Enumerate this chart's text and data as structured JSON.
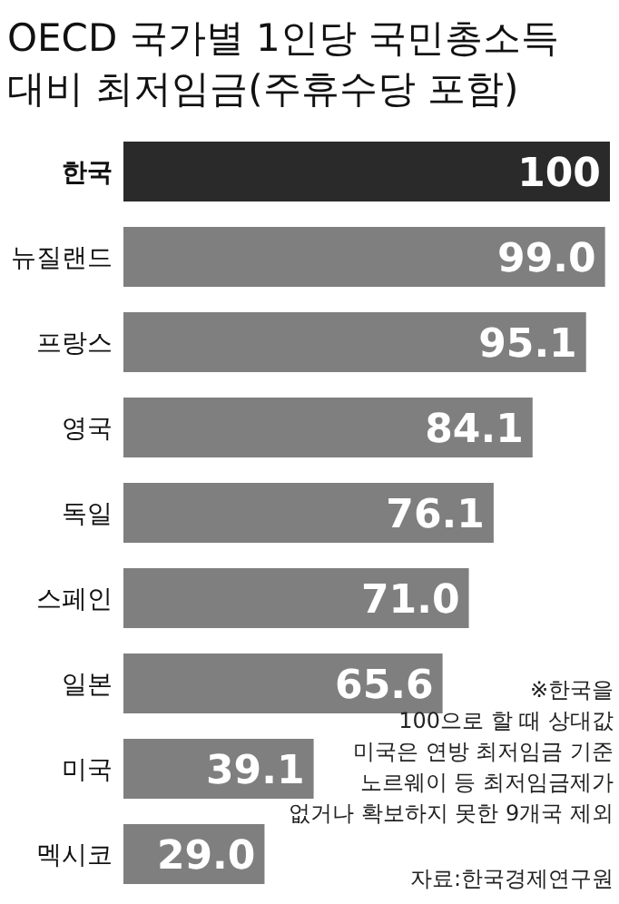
{
  "chart_data": {
    "type": "bar",
    "orientation": "horizontal",
    "title": "OECD 국가별 1인당 국민총소득 대비 최저임금(주휴수당 포함)",
    "categories": [
      "한국",
      "뉴질랜드",
      "프랑스",
      "영국",
      "독일",
      "스페인",
      "일본",
      "미국",
      "멕시코"
    ],
    "values": [
      100,
      99.0,
      95.1,
      84.1,
      76.1,
      71.0,
      65.6,
      39.1,
      29.0
    ],
    "value_labels": [
      "100",
      "99.0",
      "95.1",
      "84.1",
      "76.1",
      "71.0",
      "65.6",
      "39.1",
      "29.0"
    ],
    "colors": [
      "#2a2a2a",
      "#7f7f7f",
      "#7f7f7f",
      "#7f7f7f",
      "#7f7f7f",
      "#7f7f7f",
      "#7f7f7f",
      "#7f7f7f",
      "#7f7f7f"
    ],
    "xlim": [
      0,
      100
    ],
    "annotations": [
      "※한국을",
      "100으로 할 때 상대값",
      "미국은 연방 최저임금 기준",
      "노르웨이 등 최저임금제가",
      "없거나 확보하지 못한 9개국 제외",
      "자료:한국경제연구원"
    ]
  }
}
